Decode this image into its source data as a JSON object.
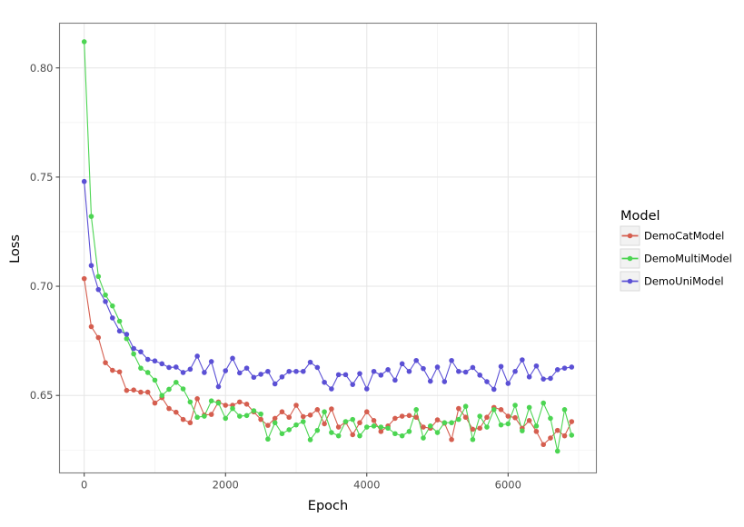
{
  "chart_data": {
    "type": "line",
    "xlabel": "Epoch",
    "ylabel": "Loss",
    "xlim": [
      -350,
      7250
    ],
    "ylim": [
      0.6145,
      0.8205
    ],
    "x_ticks": [
      0,
      2000,
      4000,
      6000
    ],
    "x_tick_labels": [
      "0",
      "2000",
      "4000",
      "6000"
    ],
    "y_ticks": [
      0.65,
      0.7,
      0.75,
      0.8
    ],
    "y_tick_labels": [
      "0.65",
      "0.70",
      "0.75",
      "0.80"
    ],
    "grid": true,
    "legend": {
      "title": "Model",
      "position": "right"
    },
    "series": [
      {
        "name": "DemoCatModel",
        "color": "#D55E4F",
        "x": [
          0,
          100,
          200,
          300,
          400,
          500,
          600,
          700,
          800,
          900,
          1000,
          1100,
          1200,
          1300,
          1400,
          1500,
          1600,
          1700,
          1800,
          1900,
          2000,
          2100,
          2200,
          2300,
          2400,
          2500,
          2600,
          2700,
          2800,
          2900,
          3000,
          3100,
          3200,
          3300,
          3400,
          3500,
          3600,
          3700,
          3800,
          3900,
          4000,
          4100,
          4200,
          4300,
          4400,
          4500,
          4600,
          4700,
          4800,
          4900,
          5000,
          5100,
          5200,
          5300,
          5400,
          5500,
          5600,
          5700,
          5800,
          5900,
          6000,
          6100,
          6200,
          6300,
          6400,
          6500,
          6600,
          6700,
          6800,
          6900
        ],
        "values": [
          0.7035,
          0.6815,
          0.6765,
          0.665,
          0.6615,
          0.6608,
          0.6523,
          0.6525,
          0.6515,
          0.6515,
          0.6465,
          0.649,
          0.644,
          0.6423,
          0.639,
          0.6375,
          0.6485,
          0.641,
          0.6413,
          0.647,
          0.6455,
          0.6455,
          0.647,
          0.646,
          0.6425,
          0.639,
          0.6363,
          0.6395,
          0.6425,
          0.64,
          0.6455,
          0.6403,
          0.641,
          0.6435,
          0.637,
          0.6438,
          0.6355,
          0.6378,
          0.632,
          0.6375,
          0.6425,
          0.6385,
          0.6335,
          0.636,
          0.6395,
          0.6405,
          0.6408,
          0.64,
          0.6355,
          0.635,
          0.6388,
          0.6373,
          0.6298,
          0.644,
          0.64,
          0.6345,
          0.635,
          0.64,
          0.6445,
          0.6435,
          0.6405,
          0.6398,
          0.635,
          0.6385,
          0.6335,
          0.6275,
          0.6305,
          0.634,
          0.6315,
          0.638
        ]
      },
      {
        "name": "DemoMultiModel",
        "color": "#4CD552",
        "x": [
          0,
          100,
          200,
          300,
          400,
          500,
          600,
          700,
          800,
          900,
          1000,
          1100,
          1200,
          1300,
          1400,
          1500,
          1600,
          1700,
          1800,
          1900,
          2000,
          2100,
          2200,
          2300,
          2400,
          2500,
          2600,
          2700,
          2800,
          2900,
          3000,
          3100,
          3200,
          3300,
          3400,
          3500,
          3600,
          3700,
          3800,
          3900,
          4000,
          4100,
          4200,
          4300,
          4400,
          4500,
          4600,
          4700,
          4800,
          4900,
          5000,
          5100,
          5200,
          5300,
          5400,
          5500,
          5600,
          5700,
          5800,
          5900,
          6000,
          6100,
          6200,
          6300,
          6400,
          6500,
          6600,
          6700,
          6800,
          6900
        ],
        "values": [
          0.812,
          0.732,
          0.7045,
          0.696,
          0.691,
          0.684,
          0.676,
          0.669,
          0.6625,
          0.6605,
          0.657,
          0.65,
          0.6528,
          0.656,
          0.653,
          0.647,
          0.64,
          0.6405,
          0.6475,
          0.6465,
          0.6395,
          0.644,
          0.6405,
          0.6408,
          0.643,
          0.6415,
          0.63,
          0.6375,
          0.6325,
          0.6343,
          0.6365,
          0.638,
          0.6297,
          0.634,
          0.6425,
          0.633,
          0.6315,
          0.638,
          0.639,
          0.6315,
          0.6355,
          0.636,
          0.6355,
          0.635,
          0.6325,
          0.6315,
          0.6335,
          0.6435,
          0.6305,
          0.636,
          0.633,
          0.6375,
          0.6375,
          0.639,
          0.645,
          0.6298,
          0.6405,
          0.6355,
          0.6435,
          0.6365,
          0.637,
          0.6455,
          0.6338,
          0.6445,
          0.636,
          0.6465,
          0.6395,
          0.6245,
          0.6435,
          0.6318
        ]
      },
      {
        "name": "DemoUniModel",
        "color": "#5B50D5",
        "x": [
          0,
          100,
          200,
          300,
          400,
          500,
          600,
          700,
          800,
          900,
          1000,
          1100,
          1200,
          1300,
          1400,
          1500,
          1600,
          1700,
          1800,
          1900,
          2000,
          2100,
          2200,
          2300,
          2400,
          2500,
          2600,
          2700,
          2800,
          2900,
          3000,
          3100,
          3200,
          3300,
          3400,
          3500,
          3600,
          3700,
          3800,
          3900,
          4000,
          4100,
          4200,
          4300,
          4400,
          4500,
          4600,
          4700,
          4800,
          4900,
          5000,
          5100,
          5200,
          5300,
          5400,
          5500,
          5600,
          5700,
          5800,
          5900,
          6000,
          6100,
          6200,
          6300,
          6400,
          6500,
          6600,
          6700,
          6800,
          6900
        ],
        "values": [
          0.748,
          0.7095,
          0.6985,
          0.693,
          0.6855,
          0.6795,
          0.678,
          0.6715,
          0.67,
          0.6665,
          0.6658,
          0.6645,
          0.6628,
          0.663,
          0.6605,
          0.662,
          0.668,
          0.6605,
          0.6655,
          0.654,
          0.6613,
          0.667,
          0.6603,
          0.6625,
          0.6583,
          0.6597,
          0.661,
          0.6553,
          0.6585,
          0.661,
          0.661,
          0.661,
          0.6652,
          0.6628,
          0.656,
          0.653,
          0.6595,
          0.6595,
          0.655,
          0.66,
          0.653,
          0.661,
          0.6593,
          0.6618,
          0.657,
          0.6645,
          0.661,
          0.666,
          0.6623,
          0.6565,
          0.663,
          0.6563,
          0.666,
          0.661,
          0.6607,
          0.6628,
          0.6593,
          0.6563,
          0.6528,
          0.6633,
          0.6555,
          0.661,
          0.6663,
          0.6585,
          0.6635,
          0.6575,
          0.6578,
          0.6618,
          0.6625,
          0.663
        ]
      }
    ]
  }
}
